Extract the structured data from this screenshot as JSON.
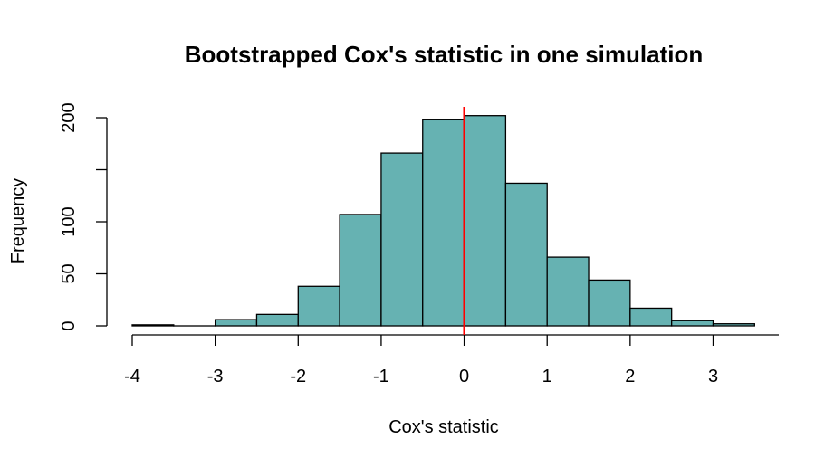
{
  "chart_data": {
    "type": "histogram",
    "title": "Bootstrapped Cox's statistic in one simulation",
    "xlabel": "Cox's statistic",
    "ylabel": "Frequency",
    "bin_edges": [
      -4,
      -3.5,
      -3,
      -2.5,
      -2,
      -1.5,
      -1,
      -0.5,
      0,
      0.5,
      1,
      1.5,
      2,
      2.5,
      3,
      3.5
    ],
    "values": [
      1,
      0,
      6,
      11,
      38,
      107,
      166,
      198,
      202,
      137,
      66,
      44,
      17,
      5,
      2
    ],
    "x_ticks": [
      -4,
      -3,
      -2,
      -1,
      0,
      1,
      2,
      3
    ],
    "x_tick_labels": [
      "-4",
      "-3",
      "-2",
      "-1",
      "0",
      "1",
      "2",
      "3"
    ],
    "y_ticks": [
      0,
      50,
      100,
      150,
      200
    ],
    "y_tick_labels": [
      "0",
      "50",
      "100",
      "",
      "200"
    ],
    "xlim": [
      -4,
      3.5
    ],
    "ylim": [
      0,
      200
    ],
    "bar_color": "#66b2b2",
    "bar_edge_color": "#000000",
    "vline": {
      "x": 0,
      "color": "#ff0000"
    },
    "grid": false,
    "legend": "none"
  }
}
